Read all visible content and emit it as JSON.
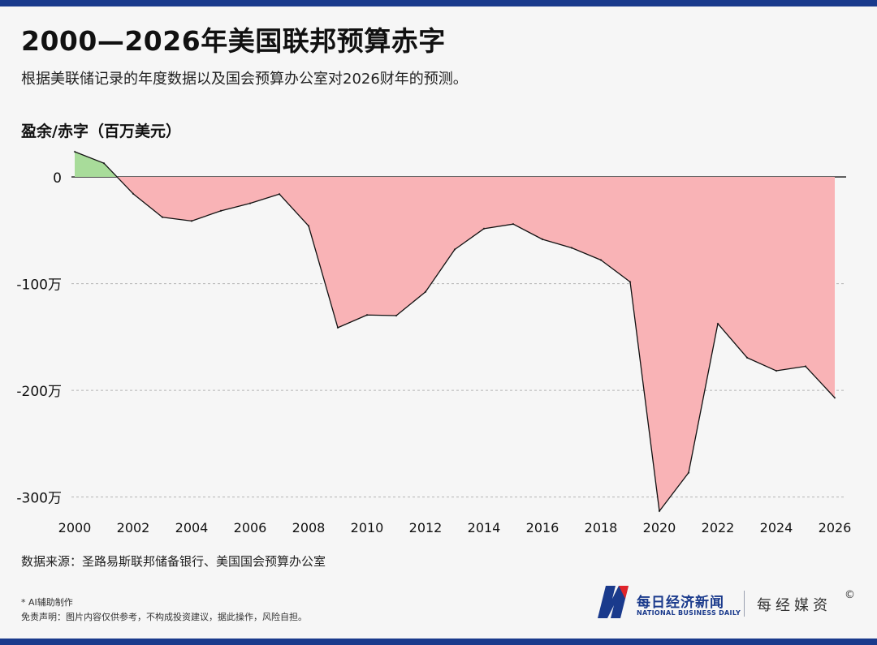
{
  "header": {
    "title": "2000—2026年美国联邦预算赤字",
    "subtitle": "根据美联储记录的年度数据以及国会预算办公室对2026财年的预测。"
  },
  "footer": {
    "source": "数据来源：圣路易斯联邦储备银行、美国国会预算办公室",
    "ai_note": "* AI辅助制作",
    "disclaimer": "免责声明：图片内容仅供参考，不构成投资建议，据此操作，风险自担。"
  },
  "logo": {
    "name_cn": "每日经济新闻",
    "name_en": "NATIONAL BUSINESS DAILY",
    "brand": "每经媒资",
    "copyright": "©"
  },
  "colors": {
    "surplus_fill": "#a8dc9a",
    "deficit_fill": "#f9b3b6",
    "line": "#111111",
    "brand_blue": "#1a3a8c"
  },
  "chart_data": {
    "type": "area",
    "title": "2000—2026年美国联邦预算赤字",
    "ylabel": "盈余/赤字（百万美元）",
    "xlabel": "",
    "x": [
      2000,
      2001,
      2002,
      2003,
      2004,
      2005,
      2006,
      2007,
      2008,
      2009,
      2010,
      2011,
      2012,
      2013,
      2014,
      2015,
      2016,
      2017,
      2018,
      2019,
      2020,
      2021,
      2022,
      2023,
      2024,
      2025,
      2026
    ],
    "values": [
      236000,
      128000,
      -158000,
      -378000,
      -413000,
      -318000,
      -248000,
      -161000,
      -459000,
      -1413000,
      -1294000,
      -1300000,
      -1077000,
      -680000,
      -485000,
      -442000,
      -585000,
      -665000,
      -779000,
      -984000,
      -3132000,
      -2772000,
      -1375000,
      -1694000,
      -1817000,
      -1775000,
      -2070000
    ],
    "xticks": [
      2000,
      2002,
      2004,
      2006,
      2008,
      2010,
      2012,
      2014,
      2016,
      2018,
      2020,
      2022,
      2024,
      2026
    ],
    "yticks": [
      {
        "value": 0,
        "label": "0"
      },
      {
        "value": -1000000,
        "label": "-100万"
      },
      {
        "value": -2000000,
        "label": "-200万"
      },
      {
        "value": -3000000,
        "label": "-300万"
      }
    ],
    "xlim": [
      2000,
      2026
    ],
    "ylim": [
      -3132000,
      236000
    ],
    "grid": "horizontal-dashed",
    "legend": "none"
  }
}
